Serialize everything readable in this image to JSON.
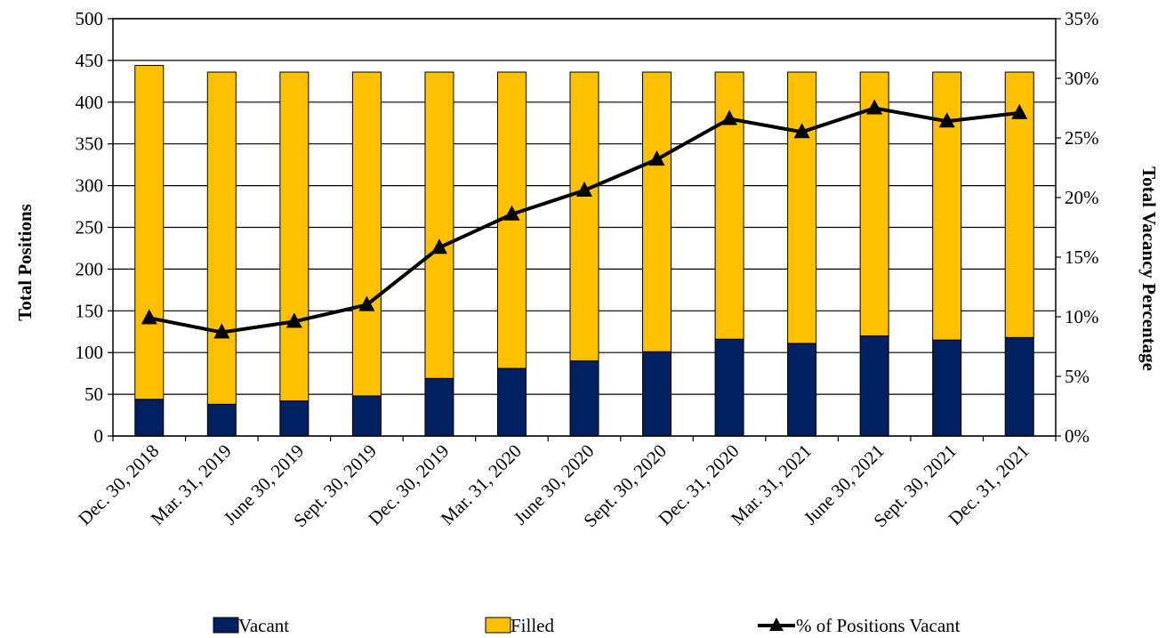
{
  "chart_data": {
    "type": "bar",
    "stacked": true,
    "categories": [
      "Dec. 30, 2018",
      "Mar. 31, 2019",
      "June 30, 2019",
      "Sept. 30, 2019",
      "Dec. 30, 2019",
      "Mar. 31, 2020",
      "June 30, 2020",
      "Sept. 30, 2020",
      "Dec. 31, 2020",
      "Mar. 31, 2021",
      "June 30, 2021",
      "Sept. 30, 2021",
      "Dec. 31, 2021"
    ],
    "series": [
      {
        "name": "Vacant",
        "kind": "bar",
        "axis": "left",
        "color": "#002060",
        "values": [
          44,
          38,
          42,
          48,
          69,
          81,
          90,
          101,
          116,
          111,
          120,
          115,
          118
        ]
      },
      {
        "name": "Filled",
        "kind": "bar",
        "axis": "left",
        "color": "#FFC000",
        "values": [
          400,
          398,
          394,
          388,
          367,
          355,
          346,
          335,
          320,
          325,
          316,
          321,
          318
        ]
      },
      {
        "name": "% of Positions Vacant",
        "kind": "line",
        "axis": "right",
        "color": "#000000",
        "marker": "triangle",
        "values": [
          9.9,
          8.7,
          9.6,
          11.0,
          15.8,
          18.6,
          20.6,
          23.2,
          26.6,
          25.5,
          27.5,
          26.4,
          27.1
        ]
      }
    ],
    "title": "",
    "xlabel": "",
    "ylabel": "Total Positions",
    "ylabel_right": "Total Vacancy Percentage",
    "ylim": [
      0,
      500
    ],
    "yticks": [
      "0",
      "50",
      "100",
      "150",
      "200",
      "250",
      "300",
      "350",
      "400",
      "450",
      "500"
    ],
    "ylim_right": [
      0,
      35
    ],
    "yticks_right": [
      "0%",
      "5%",
      "10%",
      "15%",
      "20%",
      "25%",
      "30%",
      "35%"
    ],
    "grid": true,
    "legend_position": "bottom"
  }
}
